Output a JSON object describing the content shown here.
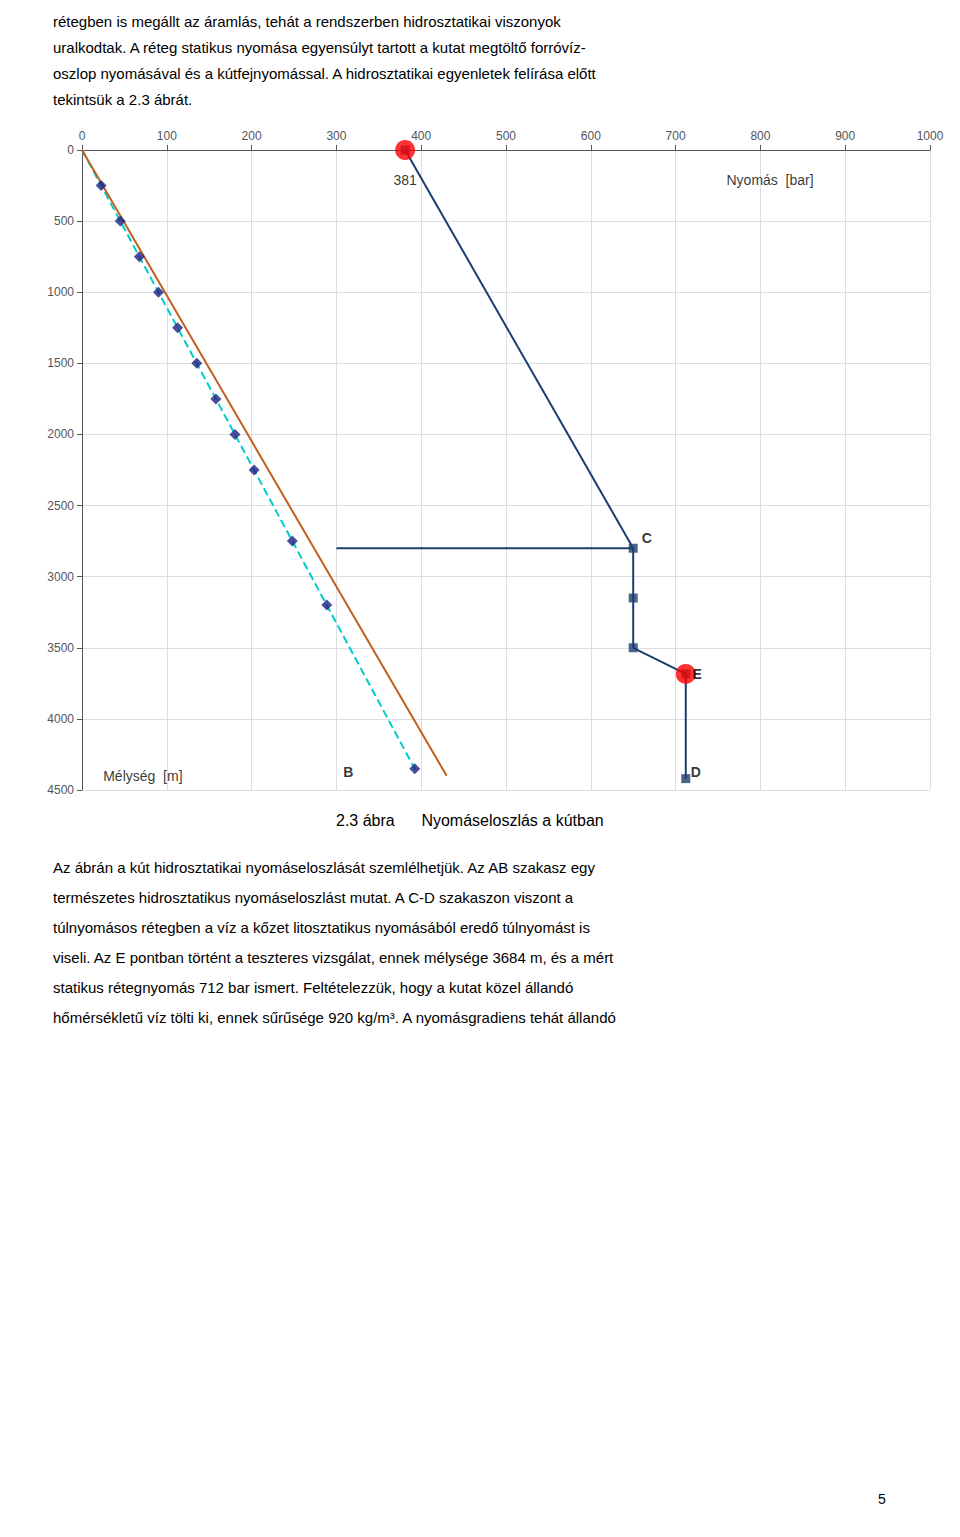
{
  "chart_data": {
    "type": "line",
    "caption": "2.3 ábra      Nyomáseloszlás a kútban",
    "text_above": [
      "rétegben is megállt az áramlás, tehát a rendszerben hidrosztatikai viszonyok",
      "uralkodtak. A réteg statikus nyomása egyensúlyt tartott a kutat megtöltő forróvíz-",
      "oszlop nyomásával és a kútfejnyomással. A hidrosztatikai egyenletek felírása előtt",
      "tekintsük a 2.3 ábrát."
    ],
    "text_below": [
      "Az ábrán a kút hidrosztatikai nyomáseloszlását szemlélhetjük. Az AB szakasz egy",
      "természetes hidrosztatikus nyomáseloszlást mutat. A C-D szakaszon viszont a",
      "túlnyomásos rétegben a víz a kőzet litosztatikus nyomásából eredő túlnyomást is",
      "viseli. Az E pontban történt a teszteres vizsgálat, ennek mélysége 3684 m, és a mért",
      "statikus rétegnyomás 712 bar ismert. Feltételezzük, hogy a kutat közel állandó",
      "hőmérsékletű víz tölti ki, ennek sűrűsége 920 kg/m³. A nyomásgradiens tehát állandó"
    ],
    "page_number": "5",
    "xlim": [
      0,
      1000
    ],
    "ylim": [
      4500,
      0
    ],
    "xticks": [
      0,
      100,
      200,
      300,
      400,
      500,
      600,
      700,
      800,
      900,
      1000
    ],
    "yticks": [
      0,
      500,
      1000,
      1500,
      2000,
      2500,
      3000,
      3500,
      4000,
      4500
    ],
    "grid": true,
    "series": [
      {
        "type": "line",
        "color": "#00CCCC",
        "line_style": "dashed",
        "x": [
          0,
          395.076
        ],
        "y": [
          0,
          4380
        ]
      },
      {
        "type": "scatter",
        "color": "#1C2080",
        "marker": "diamond",
        "x": [
          22.55,
          45.1,
          67.65,
          90.2,
          112.75,
          135.3,
          157.85,
          180.4,
          202.95,
          248.05,
          288.64,
          392.37
        ],
        "y": [
          250,
          500,
          750,
          1000,
          1250,
          1500,
          1750,
          2000,
          2250,
          2750,
          3200,
          4350
        ]
      },
      {
        "type": "line",
        "color": "#C06020",
        "line_style": "solid",
        "x": [
          0,
          430
        ],
        "y": [
          0,
          4400
        ]
      },
      {
        "type": "line",
        "color": "#1C3E6E",
        "line_style": "solid",
        "x": [
          381,
          650
        ],
        "y": [
          0,
          2800
        ]
      },
      {
        "type": "line",
        "color": "#1C3E6E",
        "line_style": "solid",
        "x": [
          300,
          650
        ],
        "y": [
          2800,
          2800
        ]
      },
      {
        "type": "line",
        "color": "#1C3E6E",
        "line_style": "solid",
        "x": [
          650,
          650
        ],
        "y": [
          2800,
          3500
        ]
      },
      {
        "type": "line",
        "color": "#1C3E6E",
        "line_style": "solid",
        "x": [
          650,
          712
        ],
        "y": [
          3500,
          3684
        ]
      },
      {
        "type": "line",
        "color": "#1C3E6E",
        "line_style": "solid",
        "x": [
          712,
          712
        ],
        "y": [
          3684,
          4420
        ]
      },
      {
        "type": "scatter",
        "color": "#1C3E6E",
        "marker": "square",
        "x": [
          381,
          650,
          650,
          650,
          712,
          712
        ],
        "y": [
          0,
          2800,
          3150,
          3500,
          3684,
          4420
        ]
      },
      {
        "type": "scatter",
        "color": "#FF0000",
        "marker": "circle",
        "x": [
          381
        ],
        "y": [
          0
        ]
      },
      {
        "type": "scatter",
        "color": "#FF0000",
        "marker": "circle",
        "x": [
          712
        ],
        "y": [
          3684
        ]
      }
    ],
    "annotations": [
      {
        "text": "381",
        "x": 381,
        "y": 160
      },
      {
        "text": "Nyomás  [bar]",
        "x": 760,
        "y": 160
      },
      {
        "text": "Mélység  [m]",
        "x": 25,
        "y": 4350
      },
      {
        "text": "C",
        "x": 660,
        "y": 2780
      },
      {
        "text": "B",
        "x": 308,
        "y": 4370
      },
      {
        "text": "D",
        "x": 718,
        "y": 4370
      },
      {
        "text": "E",
        "x": 720,
        "y": 3684
      }
    ]
  }
}
